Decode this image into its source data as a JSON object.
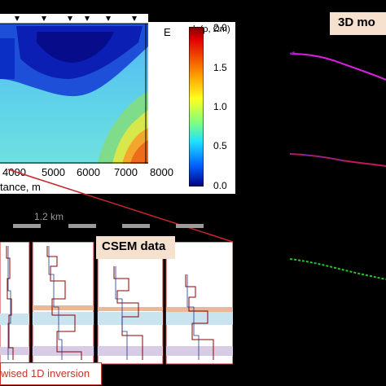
{
  "section_panel": {
    "east_label": "E",
    "x_axis_label": "tance, m",
    "x_ticks": [
      "4000",
      "5000",
      "6000",
      "7000",
      "8000"
    ],
    "colorbar": {
      "title": "lg(ρ, Ωm)",
      "ticks": [
        "2.0",
        "1.5",
        "1.0",
        "0.5",
        "0.0"
      ]
    }
  },
  "title_3d": "3D mo",
  "scale_label": "1.2 km",
  "csem_label": "CSEM data",
  "inversion_label": "wised 1D inversion",
  "colors": {
    "magenta_line": "#d81ee0",
    "blue_red_line": "#c2185b",
    "green_line": "#22c72a",
    "connector": "#c62828",
    "label_bg": "#f6e1cf"
  }
}
